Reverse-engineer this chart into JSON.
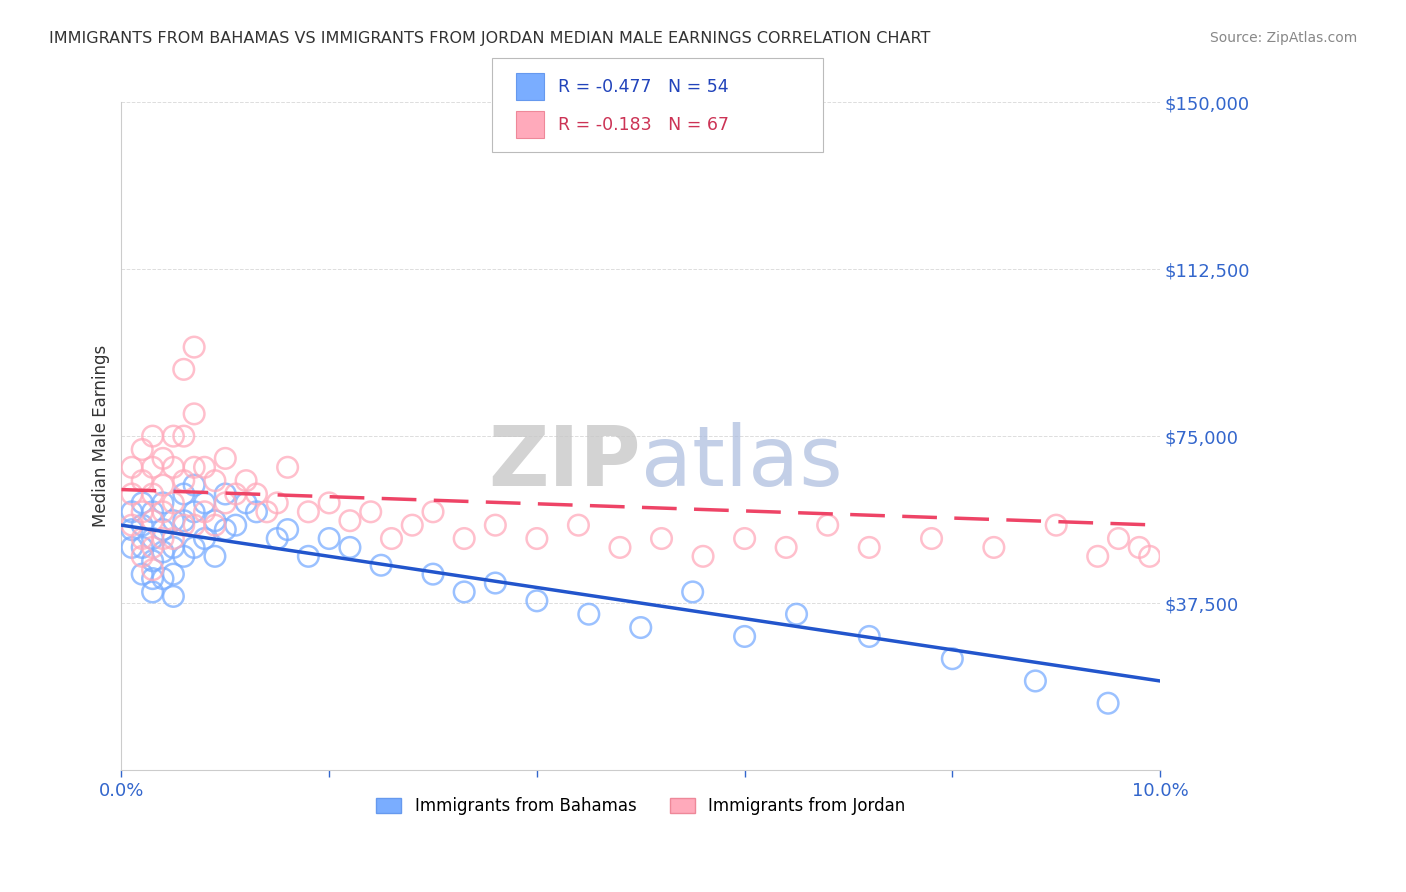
{
  "title": "IMMIGRANTS FROM BAHAMAS VS IMMIGRANTS FROM JORDAN MEDIAN MALE EARNINGS CORRELATION CHART",
  "source": "Source: ZipAtlas.com",
  "ylabel": "Median Male Earnings",
  "series1_name": "Immigrants from Bahamas",
  "series1_color": "#7aadff",
  "series1_line_color": "#2255cc",
  "series1_R": "-0.477",
  "series1_N": "54",
  "series2_name": "Immigrants from Jordan",
  "series2_color": "#ffaabb",
  "series2_line_color": "#ee4466",
  "series2_R": "-0.183",
  "series2_N": "67",
  "x_min": 0.0,
  "x_max": 0.1,
  "y_min": 0,
  "y_max": 150000,
  "yticks": [
    0,
    37500,
    75000,
    112500,
    150000
  ],
  "ytick_labels": [
    "",
    "$37,500",
    "$75,000",
    "$112,500",
    "$150,000"
  ],
  "xticks": [
    0.0,
    0.02,
    0.04,
    0.06,
    0.08,
    0.1
  ],
  "xtick_labels": [
    "0.0%",
    "",
    "",
    "",
    "",
    "10.0%"
  ],
  "watermark_zip": "ZIP",
  "watermark_atlas": "atlas",
  "bg_color": "#ffffff",
  "grid_color": "#dddddd",
  "axis_color": "#333333",
  "tick_color": "#3366cc",
  "title_color": "#333333",
  "series1_line_y0": 55000,
  "series1_line_y1": 20000,
  "series2_line_y0": 63000,
  "series2_line_y1": 55000,
  "series1_x": [
    0.001,
    0.001,
    0.001,
    0.002,
    0.002,
    0.002,
    0.002,
    0.003,
    0.003,
    0.003,
    0.003,
    0.003,
    0.004,
    0.004,
    0.004,
    0.004,
    0.005,
    0.005,
    0.005,
    0.005,
    0.006,
    0.006,
    0.006,
    0.007,
    0.007,
    0.007,
    0.008,
    0.008,
    0.009,
    0.009,
    0.01,
    0.01,
    0.011,
    0.012,
    0.013,
    0.015,
    0.016,
    0.018,
    0.02,
    0.022,
    0.025,
    0.03,
    0.033,
    0.036,
    0.04,
    0.045,
    0.05,
    0.055,
    0.06,
    0.065,
    0.072,
    0.08,
    0.088,
    0.095
  ],
  "series1_y": [
    58000,
    54000,
    50000,
    60000,
    55000,
    50000,
    44000,
    58000,
    52000,
    47000,
    43000,
    40000,
    60000,
    54000,
    49000,
    43000,
    56000,
    50000,
    44000,
    39000,
    62000,
    56000,
    48000,
    64000,
    58000,
    50000,
    60000,
    52000,
    56000,
    48000,
    62000,
    54000,
    55000,
    60000,
    58000,
    52000,
    54000,
    48000,
    52000,
    50000,
    46000,
    44000,
    40000,
    42000,
    38000,
    35000,
    32000,
    40000,
    30000,
    35000,
    30000,
    25000,
    20000,
    15000
  ],
  "series2_x": [
    0.001,
    0.001,
    0.001,
    0.002,
    0.002,
    0.002,
    0.002,
    0.002,
    0.003,
    0.003,
    0.003,
    0.003,
    0.003,
    0.003,
    0.004,
    0.004,
    0.004,
    0.004,
    0.005,
    0.005,
    0.005,
    0.005,
    0.006,
    0.006,
    0.006,
    0.006,
    0.007,
    0.007,
    0.007,
    0.007,
    0.008,
    0.008,
    0.009,
    0.009,
    0.01,
    0.01,
    0.011,
    0.012,
    0.013,
    0.014,
    0.015,
    0.016,
    0.018,
    0.02,
    0.022,
    0.024,
    0.026,
    0.028,
    0.03,
    0.033,
    0.036,
    0.04,
    0.044,
    0.048,
    0.052,
    0.056,
    0.06,
    0.064,
    0.068,
    0.072,
    0.078,
    0.084,
    0.09,
    0.094,
    0.096,
    0.098,
    0.099
  ],
  "series2_y": [
    68000,
    62000,
    55000,
    72000,
    65000,
    58000,
    52000,
    48000,
    75000,
    68000,
    62000,
    56000,
    50000,
    45000,
    70000,
    64000,
    58000,
    52000,
    75000,
    68000,
    60000,
    52000,
    90000,
    75000,
    65000,
    55000,
    95000,
    80000,
    68000,
    55000,
    68000,
    58000,
    65000,
    55000,
    70000,
    60000,
    62000,
    65000,
    62000,
    58000,
    60000,
    68000,
    58000,
    60000,
    56000,
    58000,
    52000,
    55000,
    58000,
    52000,
    55000,
    52000,
    55000,
    50000,
    52000,
    48000,
    52000,
    50000,
    55000,
    50000,
    52000,
    50000,
    55000,
    48000,
    52000,
    50000,
    48000
  ]
}
